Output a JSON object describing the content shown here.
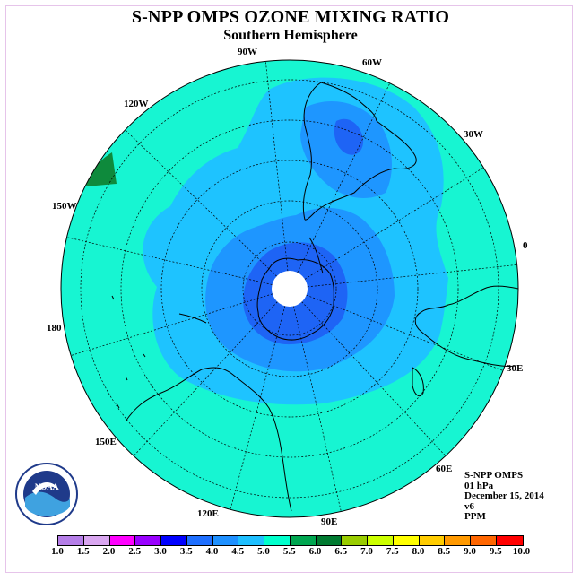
{
  "title": "S-NPP OMPS OZONE MIXING RATIO",
  "subtitle": "Southern Hemisphere",
  "longitude_labels": [
    "90W",
    "60W",
    "30W",
    "0",
    "30E",
    "60E",
    "90E",
    "120E",
    "150E",
    "180",
    "150W",
    "120W"
  ],
  "info": {
    "instrument": "S-NPP OMPS",
    "level": "01 hPa",
    "date": "December 15, 2014",
    "version": "v6",
    "units": "PPM"
  },
  "logo": {
    "text": "NOAA",
    "ring_text": "NATIONAL OCEANIC AND ATMOSPHERIC ADMINISTRATION · U.S. DEPARTMENT OF COMMERCE"
  },
  "colorbar": {
    "labels": [
      "1.0",
      "1.5",
      "2.0",
      "2.5",
      "3.0",
      "3.5",
      "4.0",
      "4.5",
      "5.0",
      "5.5",
      "6.0",
      "6.5",
      "7.0",
      "7.5",
      "8.0",
      "8.5",
      "9.0",
      "9.5",
      "10.0"
    ],
    "colors": [
      "#b57ee8",
      "#d9a6f0",
      "#ff00ff",
      "#9900ff",
      "#0000ff",
      "#1e6fff",
      "#1e90ff",
      "#1ebfff",
      "#00ffcc",
      "#00a650",
      "#007a30",
      "#99cc00",
      "#ccff00",
      "#ffff00",
      "#ffcc00",
      "#ff9900",
      "#ff6600",
      "#ff0000",
      "#8b5a2b"
    ]
  },
  "map": {
    "field_colors": {
      "level_4_5": "#17f5d2",
      "level_4_0": "#1ec3ff",
      "level_3_5": "#1e96ff",
      "level_3_0": "#1e64f5",
      "level_5_5": "#0e8a3c",
      "no_data": "#ffffff"
    }
  }
}
